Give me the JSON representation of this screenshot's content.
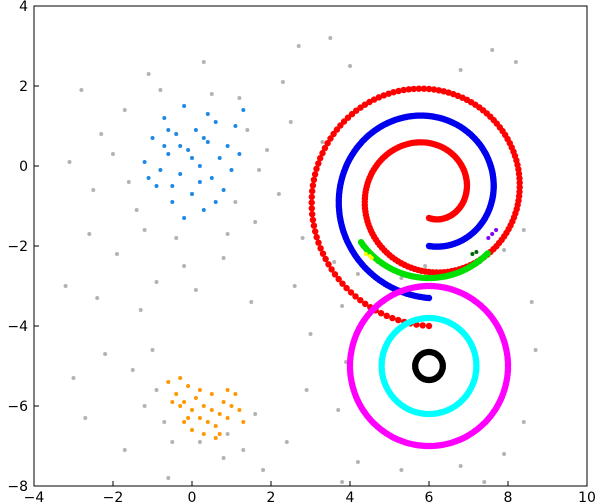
{
  "chart_data": {
    "type": "scatter",
    "title": "",
    "xlabel": "",
    "ylabel": "",
    "xlim": [
      -4,
      10
    ],
    "ylim": [
      -8,
      4
    ],
    "xticks": [
      -4,
      -2,
      0,
      2,
      4,
      6,
      8,
      10
    ],
    "yticks": [
      4,
      2,
      0,
      -2,
      -4,
      -6,
      -8
    ],
    "xtick_labels": [
      "−4",
      "−2",
      "0",
      "2",
      "4",
      "6",
      "8",
      "10"
    ],
    "ytick_labels": [
      "4",
      "2",
      "0",
      "−2",
      "−4",
      "−6",
      "−8"
    ],
    "grid": false,
    "legend": "none",
    "series": [
      {
        "color": "#b3b3b3",
        "points": [
          [
            -2.8,
            1.9
          ],
          [
            -2.5,
            -0.6
          ],
          [
            -2.3,
            0.8
          ],
          [
            -1.9,
            -2.2
          ],
          [
            -1.7,
            1.4
          ],
          [
            -1.4,
            -1.1
          ],
          [
            -1.1,
            2.3
          ],
          [
            -0.9,
            -2.9
          ],
          [
            -0.4,
            -1.8
          ],
          [
            0.3,
            2.6
          ],
          [
            0.8,
            -2.3
          ],
          [
            1.2,
            1.7
          ],
          [
            1.6,
            -1.4
          ],
          [
            1.9,
            0.4
          ],
          [
            2.2,
            -0.7
          ],
          [
            2.5,
            1.1
          ],
          [
            -2.6,
            -1.7
          ],
          [
            -2.0,
            0.3
          ],
          [
            -1.6,
            -0.4
          ],
          [
            -1.2,
            -1.6
          ],
          [
            -0.8,
            1.9
          ],
          [
            0.9,
            -1.7
          ],
          [
            1.4,
            0.9
          ],
          [
            1.7,
            -0.1
          ],
          [
            2.3,
            2.1
          ],
          [
            -3.1,
            0.1
          ],
          [
            -0.2,
            -2.5
          ],
          [
            0.5,
            1.8
          ],
          [
            1.1,
            -0.9
          ],
          [
            2.8,
            -1.8
          ],
          [
            3.3,
            0.6
          ],
          [
            3.6,
            -2.4
          ],
          [
            2.7,
            3.0
          ],
          [
            3.5,
            3.2
          ],
          [
            4.2,
            -2.7
          ],
          [
            4.7,
            -2.4
          ],
          [
            5.3,
            -2.8
          ],
          [
            5.9,
            -2.5
          ],
          [
            6.6,
            -2.7
          ],
          [
            7.3,
            -2.4
          ],
          [
            7.9,
            -2.1
          ],
          [
            8.4,
            -1.6
          ],
          [
            8.2,
            2.6
          ],
          [
            7.6,
            2.9
          ],
          [
            6.8,
            2.4
          ],
          [
            4.0,
            2.5
          ],
          [
            3.8,
            -3.5
          ],
          [
            -3.2,
            -3.0
          ],
          [
            -2.4,
            -3.3
          ],
          [
            -1.3,
            -3.6
          ],
          [
            0.1,
            -3.1
          ],
          [
            1.5,
            -3.4
          ],
          [
            2.6,
            -3.0
          ],
          [
            3.0,
            -4.2
          ],
          [
            2.9,
            -5.6
          ],
          [
            2.4,
            -6.9
          ],
          [
            1.8,
            -7.6
          ],
          [
            0.8,
            -7.3
          ],
          [
            -0.6,
            -7.8
          ],
          [
            -1.7,
            -7.1
          ],
          [
            -2.7,
            -6.3
          ],
          [
            -3.0,
            -5.3
          ],
          [
            -2.2,
            -4.7
          ],
          [
            -1.5,
            -5.1
          ],
          [
            -0.9,
            -5.6
          ],
          [
            -0.7,
            -6.4
          ],
          [
            -0.5,
            -6.9
          ],
          [
            0.2,
            -6.9
          ],
          [
            0.9,
            -6.7
          ],
          [
            1.3,
            -7.1
          ],
          [
            1.6,
            -6.2
          ],
          [
            -1.2,
            -6.0
          ],
          [
            -1.0,
            -4.6
          ],
          [
            3.9,
            -4.9
          ],
          [
            3.7,
            -6.1
          ],
          [
            4.2,
            -7.4
          ],
          [
            5.3,
            -7.6
          ],
          [
            6.8,
            -7.5
          ],
          [
            7.9,
            -7.2
          ],
          [
            8.4,
            -6.4
          ],
          [
            8.7,
            -4.6
          ],
          [
            8.6,
            -3.4
          ],
          [
            3.8,
            -7.9
          ],
          [
            7.4,
            -7.9
          ]
        ]
      },
      {
        "color": "#1e88e5",
        "points": [
          [
            -1.2,
            0.1
          ],
          [
            -1.0,
            0.7
          ],
          [
            -0.9,
            -0.5
          ],
          [
            -0.7,
            1.2
          ],
          [
            -0.6,
            0.3
          ],
          [
            -0.5,
            -0.9
          ],
          [
            -0.4,
            0.8
          ],
          [
            -0.3,
            -0.2
          ],
          [
            -0.2,
            1.5
          ],
          [
            -0.1,
            0.4
          ],
          [
            0.0,
            -0.7
          ],
          [
            0.1,
            0.9
          ],
          [
            0.2,
            0.0
          ],
          [
            0.3,
            -1.1
          ],
          [
            0.4,
            0.6
          ],
          [
            0.5,
            -0.3
          ],
          [
            0.6,
            1.1
          ],
          [
            0.7,
            0.2
          ],
          [
            0.8,
            -0.6
          ],
          [
            0.9,
            0.5
          ],
          [
            1.0,
            -0.1
          ],
          [
            1.1,
            1.0
          ],
          [
            1.2,
            0.3
          ],
          [
            -0.8,
            -0.1
          ],
          [
            -0.6,
            0.9
          ],
          [
            -0.3,
            0.5
          ],
          [
            0.0,
            0.2
          ],
          [
            0.2,
            -0.4
          ],
          [
            0.4,
            1.3
          ],
          [
            -0.5,
            -0.5
          ],
          [
            -1.1,
            -0.3
          ],
          [
            -0.2,
            -1.3
          ],
          [
            0.6,
            -0.9
          ],
          [
            1.3,
            1.4
          ],
          [
            -0.7,
            0.5
          ],
          [
            0.3,
            0.7
          ]
        ]
      },
      {
        "color": "#ff9800",
        "points": [
          [
            -0.6,
            -5.4
          ],
          [
            -0.4,
            -5.7
          ],
          [
            -0.3,
            -5.3
          ],
          [
            -0.2,
            -5.9
          ],
          [
            -0.1,
            -5.5
          ],
          [
            0.0,
            -6.1
          ],
          [
            0.1,
            -5.8
          ],
          [
            0.2,
            -6.3
          ],
          [
            0.3,
            -6.0
          ],
          [
            0.4,
            -6.4
          ],
          [
            0.5,
            -6.1
          ],
          [
            0.6,
            -6.5
          ],
          [
            0.7,
            -6.2
          ],
          [
            0.8,
            -5.9
          ],
          [
            0.9,
            -6.3
          ],
          [
            1.0,
            -6.0
          ],
          [
            1.1,
            -5.7
          ],
          [
            1.2,
            -6.1
          ],
          [
            -0.5,
            -5.9
          ],
          [
            -0.2,
            -6.4
          ],
          [
            0.0,
            -6.6
          ],
          [
            0.3,
            -6.7
          ],
          [
            0.6,
            -6.8
          ],
          [
            -0.3,
            -6.0
          ],
          [
            0.2,
            -5.6
          ],
          [
            0.5,
            -5.7
          ],
          [
            0.9,
            -5.6
          ],
          [
            1.3,
            -6.4
          ],
          [
            0.7,
            -6.7
          ],
          [
            -0.1,
            -6.3
          ]
        ]
      },
      {
        "color": "#ff0000",
        "type": "spiral",
        "center": [
          6.0,
          -0.7
        ],
        "radius_start": 0.6,
        "radius_end": 3.3,
        "turns": 2.0
      },
      {
        "color": "#0000ee",
        "type": "spiral",
        "center": [
          6.0,
          -0.7
        ],
        "radius_start": 1.3,
        "radius_end": 2.6,
        "turns": 1.0
      },
      {
        "color": "#00e000",
        "type": "arc",
        "center": [
          6.0,
          -0.7
        ],
        "radius": 2.1,
        "angle_start_deg": 215,
        "angle_end_deg": 315
      },
      {
        "color": "#ffff00",
        "points": [
          [
            4.4,
            -2.2
          ],
          [
            4.5,
            -2.25
          ],
          [
            4.55,
            -2.3
          ]
        ]
      },
      {
        "color": "#006600",
        "points": [
          [
            7.1,
            -2.2
          ],
          [
            7.2,
            -2.15
          ]
        ]
      },
      {
        "color": "#8000ff",
        "points": [
          [
            7.5,
            -1.8
          ],
          [
            7.6,
            -1.7
          ],
          [
            7.7,
            -1.6
          ]
        ]
      },
      {
        "color": "#ff00ff",
        "type": "ring",
        "center": [
          6.0,
          -5.0
        ],
        "radius": 2.0
      },
      {
        "color": "#00ffff",
        "type": "ring",
        "center": [
          6.0,
          -5.0
        ],
        "radius": 1.2
      },
      {
        "color": "#000000",
        "type": "ring",
        "center": [
          6.0,
          -5.0
        ],
        "radius": 0.35
      }
    ]
  }
}
